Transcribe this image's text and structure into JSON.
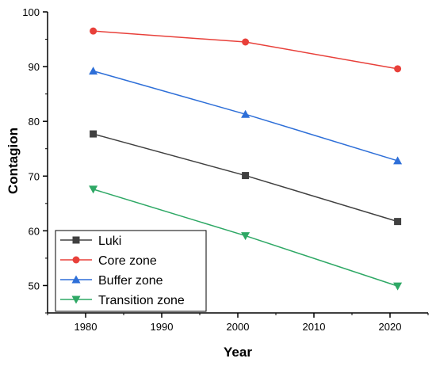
{
  "chart_data": {
    "type": "line",
    "title": "",
    "xlabel": "Year",
    "ylabel": "Contagion",
    "xlim": [
      1975,
      2025
    ],
    "ylim": [
      45,
      100
    ],
    "x_ticks": [
      1980,
      1990,
      2000,
      2010,
      2020
    ],
    "y_ticks": [
      50,
      60,
      70,
      80,
      90,
      100
    ],
    "x_tick_labels": [
      "1980",
      "1990",
      "2000",
      "2010",
      "2020"
    ],
    "y_tick_labels": [
      "50",
      "60",
      "70",
      "80",
      "90",
      "100"
    ],
    "grid": false,
    "legend_position": "bottom-left",
    "x": [
      1981,
      2001,
      2021
    ],
    "series": [
      {
        "name": "Luki",
        "values": [
          77.7,
          70.1,
          61.7
        ],
        "color": "#404040",
        "marker": "square"
      },
      {
        "name": "Core zone",
        "values": [
          96.5,
          94.5,
          89.6
        ],
        "color": "#e8403a",
        "marker": "circle"
      },
      {
        "name": "Buffer zone",
        "values": [
          89.2,
          81.3,
          72.8
        ],
        "color": "#2e6fd8",
        "marker": "triangle-up"
      },
      {
        "name": "Transition zone",
        "values": [
          67.6,
          59.1,
          49.9
        ],
        "color": "#2ea865",
        "marker": "triangle-down"
      }
    ]
  }
}
